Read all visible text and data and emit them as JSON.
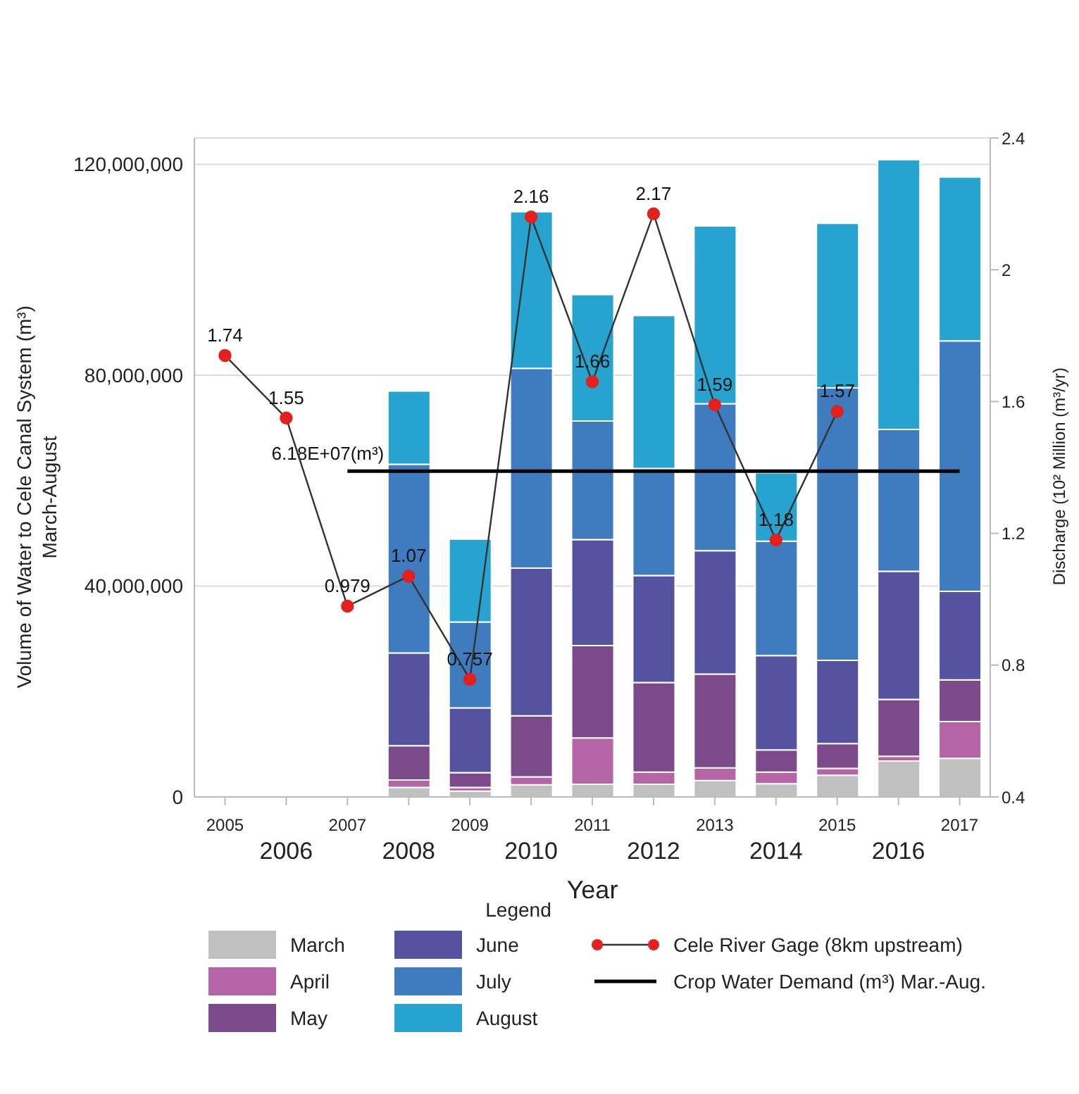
{
  "chart_data": {
    "type": "bar",
    "stacked": true,
    "xlabel": "Year",
    "ylabel": "Volume of Water to Cele Canal System (m³)\nMarch-August",
    "y2label": "Discharge (10² Million (m³/yr)",
    "categories": [
      "2005",
      "2006",
      "2007",
      "2008",
      "2009",
      "2010",
      "2011",
      "2012",
      "2013",
      "2014",
      "2015",
      "2016",
      "2017"
    ],
    "ylim": [
      0,
      125000000
    ],
    "yticks": [
      {
        "value": 0,
        "label": "0"
      },
      {
        "value": 40000000,
        "label": "40,000,000"
      },
      {
        "value": 80000000,
        "label": "80,000,000"
      },
      {
        "value": 120000000,
        "label": "120,000,000"
      }
    ],
    "y2lim": [
      0.4,
      2.4
    ],
    "y2ticks": [
      0.4,
      0.8,
      1.2,
      1.6,
      2,
      2.4
    ],
    "grid": "y",
    "legend": "bottom",
    "legend_title": "Legend",
    "series": [
      {
        "name": "March",
        "color": "#c0c0c0",
        "values": [
          null,
          null,
          null,
          1800000,
          1100000,
          2300000,
          2400000,
          2400000,
          3100000,
          2500000,
          4100000,
          6800000,
          7300000
        ]
      },
      {
        "name": "April",
        "color": "#b565a5",
        "values": [
          null,
          null,
          null,
          1400000,
          700000,
          1500000,
          8800000,
          2300000,
          2400000,
          2200000,
          1300000,
          900000,
          7000000
        ]
      },
      {
        "name": "May",
        "color": "#7b4a8a",
        "values": [
          null,
          null,
          null,
          6500000,
          2800000,
          11600000,
          17500000,
          17000000,
          17800000,
          4200000,
          4700000,
          10800000,
          7900000
        ]
      },
      {
        "name": "June",
        "color": "#5553a0",
        "values": [
          null,
          null,
          null,
          17600000,
          12300000,
          28000000,
          20100000,
          20300000,
          23400000,
          17900000,
          15800000,
          24300000,
          16800000
        ]
      },
      {
        "name": "July",
        "color": "#3f7bbf",
        "values": [
          null,
          null,
          null,
          35800000,
          16300000,
          37900000,
          22500000,
          20300000,
          27900000,
          21700000,
          51700000,
          26900000,
          47500000
        ]
      },
      {
        "name": "August",
        "color": "#27a3cf",
        "values": [
          null,
          null,
          null,
          13900000,
          15700000,
          29700000,
          24000000,
          29000000,
          33700000,
          13000000,
          31200000,
          51200000,
          31100000
        ]
      },
      {
        "name": "Cele River Gage (8km upstream)",
        "type": "line",
        "axis": "y2",
        "marker": "circle",
        "color": "#e3201b",
        "values": [
          1.74,
          1.55,
          0.979,
          1.07,
          0.757,
          2.16,
          1.66,
          2.17,
          1.59,
          1.18,
          1.57,
          null,
          null
        ],
        "value_labels": [
          "1.74",
          "1.55",
          "0.979",
          "1.07",
          "0.757",
          "2.16",
          "1.66",
          "2.17",
          "1.59",
          "1.18",
          "1.57",
          null,
          null
        ]
      },
      {
        "name": "Crop Water Demand (m³) Mar.-Aug.",
        "type": "line",
        "marker": "none",
        "color": "#000000",
        "values": [
          null,
          null,
          61800000,
          61800000,
          61800000,
          61800000,
          61800000,
          61800000,
          61800000,
          61800000,
          61800000,
          61800000,
          61800000
        ]
      }
    ],
    "annotations": [
      {
        "text": "6.18E+07(m³)",
        "x": "2007",
        "y": 61800000
      }
    ]
  }
}
